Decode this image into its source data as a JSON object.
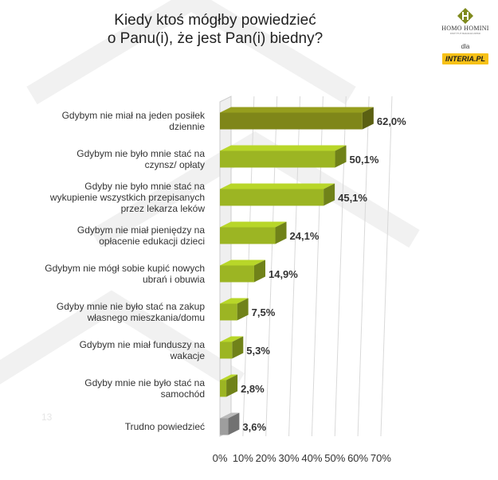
{
  "title_line1": "Kiedy ktoś mógłby powiedzieć",
  "title_line2": "o Panu(i), że jest Pan(i) biedny?",
  "brand": {
    "name": "HOMO HOMINI",
    "tagline": "INSTYTUT BADANIA OPINII",
    "for_label": "dla",
    "partner": "INTERIA.PL",
    "logo_color": "#7f8a1c"
  },
  "slide_number": "13",
  "colors": {
    "bar_dark": "#7f8619",
    "bar_green": "#9cb523",
    "bar_gray": "#9e9e9e",
    "partner_bg": "#f7c117"
  },
  "chart_data": {
    "type": "bar",
    "orientation": "horizontal",
    "style": "3d",
    "categories": [
      [
        "Gdybym nie miał  na jeden posiłek",
        "dziennie"
      ],
      [
        "Gdybym nie było mnie stać na",
        "czynsz/ opłaty"
      ],
      [
        "Gdyby nie było mnie stać na",
        "wykupienie wszystkich przepisanych",
        "przez lekarza leków"
      ],
      [
        "Gdybym nie miał pieniędzy na",
        "opłacenie edukacji dzieci"
      ],
      [
        "Gdybym nie mógł sobie kupić nowych",
        "ubrań i obuwia"
      ],
      [
        "Gdyby mnie nie było stać na zakup",
        "własnego mieszkania/domu"
      ],
      [
        "Gdybym nie miał funduszy na",
        "wakacje"
      ],
      [
        "Gdyby mnie nie było stać na",
        "samochód"
      ],
      [
        "Trudno powiedzieć"
      ]
    ],
    "values": [
      62.0,
      50.1,
      45.1,
      24.1,
      14.9,
      7.5,
      5.3,
      2.8,
      3.6
    ],
    "value_labels": [
      "62,0%",
      "50,1%",
      "45,1%",
      "24,1%",
      "14,9%",
      "7,5%",
      "5,3%",
      "2,8%",
      "3,6%"
    ],
    "bar_colors": [
      "dark",
      "green",
      "green",
      "green",
      "green",
      "green",
      "green",
      "green",
      "gray"
    ],
    "x_ticks": [
      "0%",
      "10%",
      "20%",
      "30%",
      "40%",
      "50%",
      "60%",
      "70%"
    ],
    "xlim": [
      0,
      70
    ],
    "grid": true,
    "legend": "none"
  }
}
